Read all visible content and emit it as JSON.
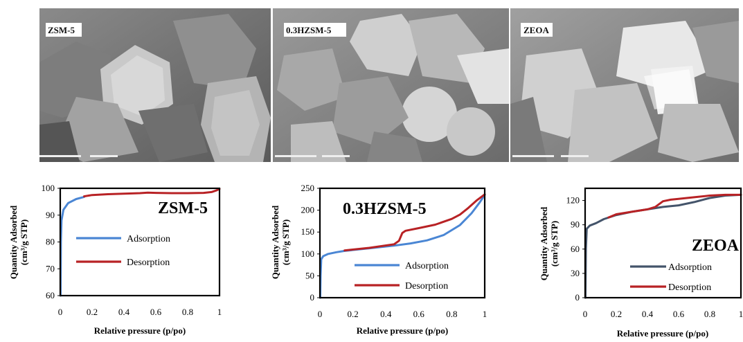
{
  "panels": [
    {
      "label": "ZSM-5"
    },
    {
      "label": "0.3HZSM-5"
    },
    {
      "label": "ZEOA"
    }
  ],
  "chart_data": [
    {
      "type": "line",
      "title": "ZSM-5",
      "xlabel": "Relative pressure (p/po)",
      "ylabel": "Quantity Adsorbed (cm³/g STP)",
      "xlim": [
        0,
        1
      ],
      "ylim": [
        60,
        100
      ],
      "xticks": [
        "0",
        "0.2",
        "0.4",
        "0.6",
        "0.8",
        "1"
      ],
      "yticks": [
        "60",
        "70",
        "80",
        "90",
        "100"
      ],
      "legend": "inside-left",
      "series": [
        {
          "name": "Adsorption",
          "color": "#4a86d4",
          "points": [
            [
              0.002,
              60
            ],
            [
              0.004,
              80
            ],
            [
              0.008,
              88
            ],
            [
              0.02,
              92
            ],
            [
              0.05,
              94.5
            ],
            [
              0.1,
              96
            ],
            [
              0.15,
              96.8
            ]
          ]
        },
        {
          "name": "Desorption",
          "color": "#b82225",
          "points": [
            [
              0.15,
              97
            ],
            [
              0.2,
              97.5
            ],
            [
              0.3,
              97.8
            ],
            [
              0.4,
              98
            ],
            [
              0.5,
              98.2
            ],
            [
              0.55,
              98.4
            ],
            [
              0.6,
              98.3
            ],
            [
              0.7,
              98.2
            ],
            [
              0.8,
              98.2
            ],
            [
              0.9,
              98.3
            ],
            [
              0.95,
              98.6
            ],
            [
              0.98,
              99.2
            ],
            [
              1.0,
              99.8
            ]
          ]
        }
      ]
    },
    {
      "type": "line",
      "title": "0.3HZSM-5",
      "xlabel": "Relative pressure (p/po)",
      "ylabel": "Quantity Adsorbed (cm³/g STP)",
      "xlim": [
        0,
        1
      ],
      "ylim": [
        0,
        250
      ],
      "xticks": [
        "0",
        "0.2",
        "0.4",
        "0.6",
        "0.8",
        "1"
      ],
      "yticks": [
        "0",
        "50",
        "100",
        "150",
        "200",
        "250"
      ],
      "legend": "bottom-right",
      "series": [
        {
          "name": "Adsorption",
          "color": "#4a86d4",
          "points": [
            [
              0.002,
              0
            ],
            [
              0.004,
              50
            ],
            [
              0.008,
              88
            ],
            [
              0.02,
              95
            ],
            [
              0.05,
              100
            ],
            [
              0.1,
              104
            ],
            [
              0.15,
              107
            ],
            [
              0.3,
              113
            ],
            [
              0.45,
              119
            ],
            [
              0.55,
              124
            ],
            [
              0.65,
              131
            ],
            [
              0.75,
              143
            ],
            [
              0.85,
              166
            ],
            [
              0.92,
              193
            ],
            [
              0.97,
              218
            ],
            [
              1.0,
              235
            ]
          ]
        },
        {
          "name": "Desorption",
          "color": "#b82225",
          "points": [
            [
              0.15,
              108
            ],
            [
              0.3,
              114
            ],
            [
              0.45,
              122
            ],
            [
              0.48,
              130
            ],
            [
              0.5,
              148
            ],
            [
              0.52,
              153
            ],
            [
              0.6,
              159
            ],
            [
              0.7,
              167
            ],
            [
              0.8,
              180
            ],
            [
              0.85,
              190
            ],
            [
              0.9,
              205
            ],
            [
              0.95,
              222
            ],
            [
              1.0,
              236
            ]
          ]
        }
      ]
    },
    {
      "type": "line",
      "title": "ZEOA",
      "xlabel": "Relative pressure (p/po)",
      "ylabel": "Quantity Adsorbed (cm³/g STP)",
      "xlim": [
        0,
        1
      ],
      "ylim": [
        0,
        135
      ],
      "xticks": [
        "0",
        "0.2",
        "0.4",
        "0.6",
        "0.8",
        "1"
      ],
      "yticks": [
        "0",
        "30",
        "60",
        "90",
        "120"
      ],
      "legend": "inside-right",
      "series": [
        {
          "name": "Adsorption",
          "color": "#44546a",
          "points": [
            [
              0.002,
              0
            ],
            [
              0.005,
              60
            ],
            [
              0.01,
              85
            ],
            [
              0.03,
              89
            ],
            [
              0.07,
              92
            ],
            [
              0.12,
              97
            ],
            [
              0.2,
              102
            ],
            [
              0.3,
              106
            ],
            [
              0.4,
              109
            ],
            [
              0.5,
              112
            ],
            [
              0.6,
              114
            ],
            [
              0.7,
              118
            ],
            [
              0.8,
              123
            ],
            [
              0.9,
              126
            ],
            [
              1.0,
              127
            ]
          ]
        },
        {
          "name": "Desorption",
          "color": "#b82225",
          "points": [
            [
              0.15,
              99
            ],
            [
              0.2,
              103
            ],
            [
              0.3,
              106
            ],
            [
              0.4,
              109
            ],
            [
              0.45,
              112
            ],
            [
              0.5,
              119
            ],
            [
              0.55,
              121
            ],
            [
              0.6,
              122
            ],
            [
              0.7,
              124
            ],
            [
              0.8,
              126
            ],
            [
              0.9,
              127
            ],
            [
              1.0,
              127
            ]
          ]
        }
      ]
    }
  ]
}
